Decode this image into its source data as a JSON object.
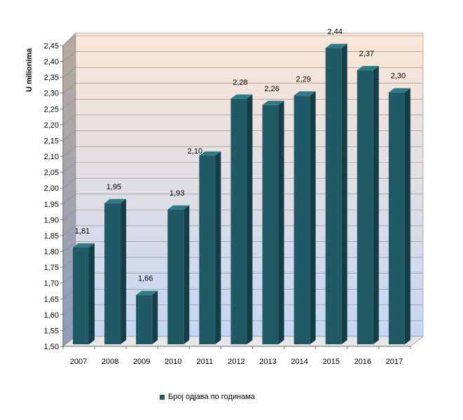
{
  "chart_data": {
    "type": "bar",
    "categories": [
      "2007",
      "2008",
      "2009",
      "2010",
      "2011",
      "2012",
      "2013",
      "2014",
      "2015",
      "2016",
      "2017"
    ],
    "series": [
      {
        "name": "Број одјава по годинама",
        "values": [
          1.81,
          1.95,
          1.66,
          1.93,
          2.1,
          2.28,
          2.26,
          2.29,
          2.44,
          2.37,
          2.3
        ],
        "labels": [
          "1,81",
          "1,95",
          "1,66",
          "1,93",
          "2,10",
          "2,28",
          "2,26",
          "2,29",
          "2,44",
          "2,37",
          "2,30"
        ]
      }
    ],
    "ylabel": "U milionima",
    "ylim": [
      1.5,
      2.45
    ],
    "yticks": [
      "1,50",
      "1,55",
      "1,60",
      "1,65",
      "1,70",
      "1,75",
      "1,80",
      "1,85",
      "1,90",
      "1,95",
      "2,00",
      "2,05",
      "2,10",
      "2,15",
      "2,20",
      "2,25",
      "2,30",
      "2,35",
      "2,40",
      "2,45"
    ],
    "grid": true,
    "legend_position": "bottom",
    "bar_color": "#1f5a66",
    "bar_side_color": "#143d46",
    "bar_top_color": "#2e7a86",
    "backwall_top_color": "#fbe6d5",
    "backwall_bottom_color": "#c5d6f3"
  }
}
